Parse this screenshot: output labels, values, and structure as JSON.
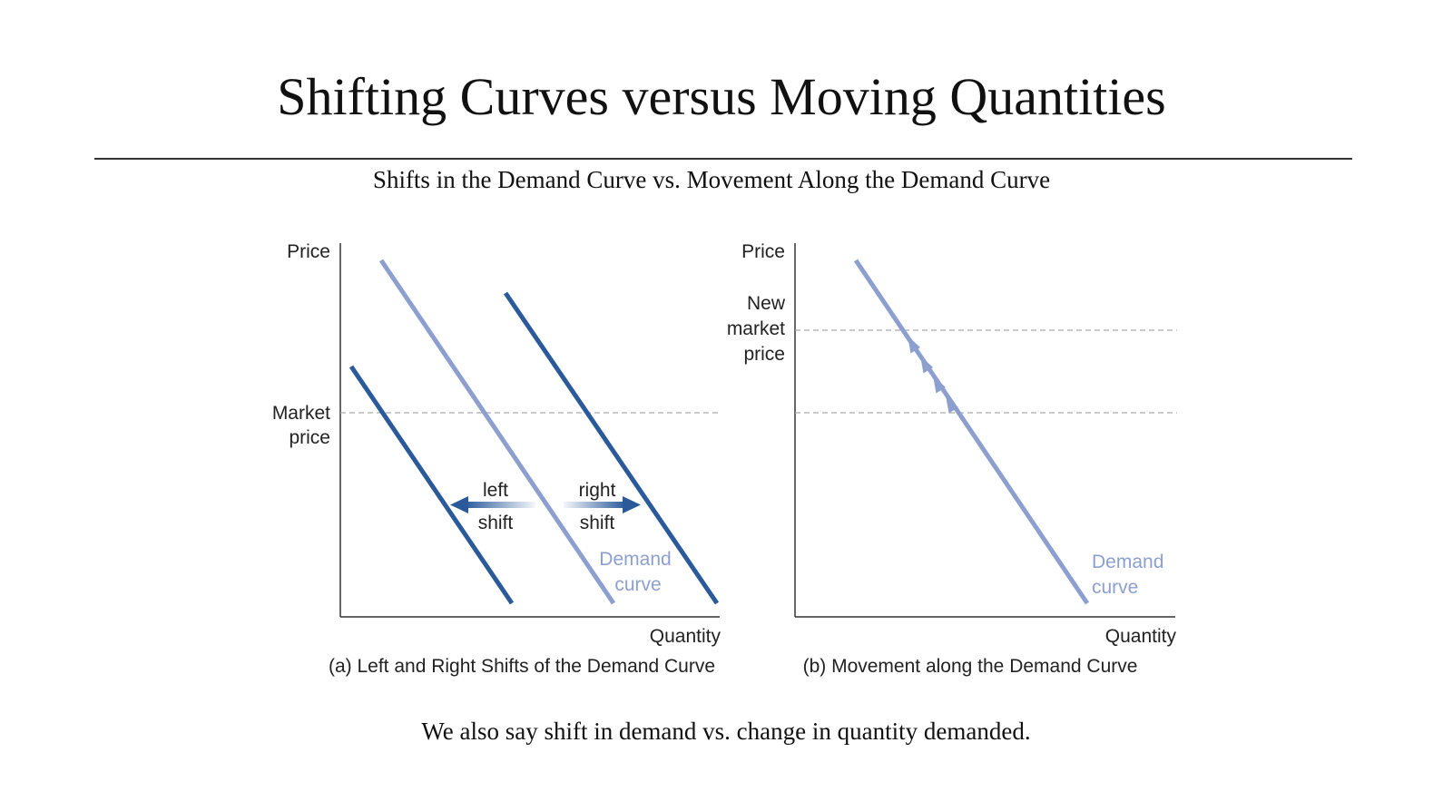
{
  "slide": {
    "title": "Shifting Curves versus Moving Quantities",
    "subtitle": "Shifts in the Demand Curve vs. Movement Along the Demand Curve",
    "footer": "We also say shift in demand vs. change in quantity demanded."
  },
  "colors": {
    "dark_blue": "#2b5a9b",
    "light_blue": "#8c9fcf",
    "axis": "#333333",
    "dashed": "#aaaaaa",
    "text": "#222222"
  },
  "panel_a": {
    "y_axis_label": "Price",
    "x_axis_label": "Quantity",
    "market_price_line1": "Market",
    "market_price_line2": "price",
    "left_label_line1": "left",
    "left_label_line2": "shift",
    "right_label_line1": "right",
    "right_label_line2": "shift",
    "curve_label_line1": "Demand",
    "curve_label_line2": "curve",
    "caption": "(a) Left and Right Shifts of the Demand Curve"
  },
  "panel_b": {
    "y_axis_label": "Price",
    "x_axis_label": "Quantity",
    "new_price_line1": "New",
    "new_price_line2": "market",
    "new_price_line3": "price",
    "curve_label_line1": "Demand",
    "curve_label_line2": "curve",
    "caption": "(b) Movement along the Demand Curve"
  }
}
